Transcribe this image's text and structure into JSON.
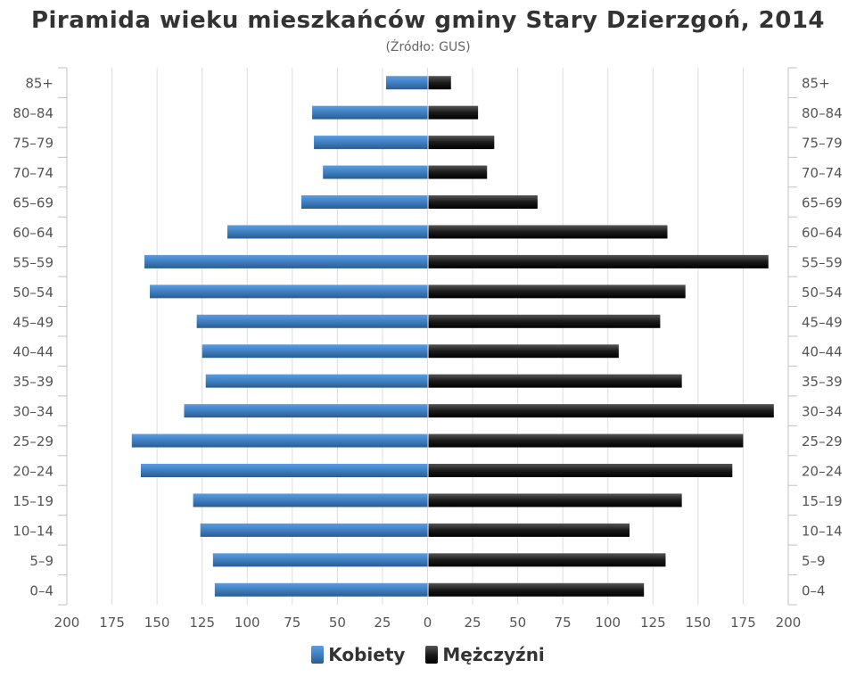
{
  "chart_data": {
    "type": "bar",
    "orientation": "horizontal-pyramid",
    "title": "Piramida wieku mieszkańców gminy Stary Dzierzgoń, 2014",
    "subtitle": "(Źródło: GUS)",
    "categories": [
      "85+",
      "80–84",
      "75–79",
      "70–74",
      "65–69",
      "60–64",
      "55–59",
      "50–54",
      "45–49",
      "40–44",
      "35–39",
      "30–34",
      "25–29",
      "20–24",
      "15–19",
      "10–14",
      "5–9",
      "0–4"
    ],
    "x_ticks": [
      "200",
      "175",
      "150",
      "125",
      "100",
      "75",
      "50",
      "25",
      "0",
      "25",
      "50",
      "75",
      "100",
      "125",
      "150",
      "175",
      "200"
    ],
    "xlim": [
      -200,
      200
    ],
    "grid": true,
    "legend_position": "bottom",
    "series": [
      {
        "name": "Kobiety",
        "color": "#3f7fc1",
        "values": [
          23,
          64,
          63,
          58,
          70,
          111,
          157,
          154,
          128,
          125,
          123,
          135,
          164,
          159,
          130,
          126,
          119,
          118
        ]
      },
      {
        "name": "Mężczyźni",
        "color": "#1a1a1a",
        "values": [
          13,
          28,
          37,
          33,
          61,
          133,
          189,
          143,
          129,
          106,
          141,
          192,
          175,
          169,
          141,
          112,
          132,
          120
        ]
      }
    ]
  }
}
